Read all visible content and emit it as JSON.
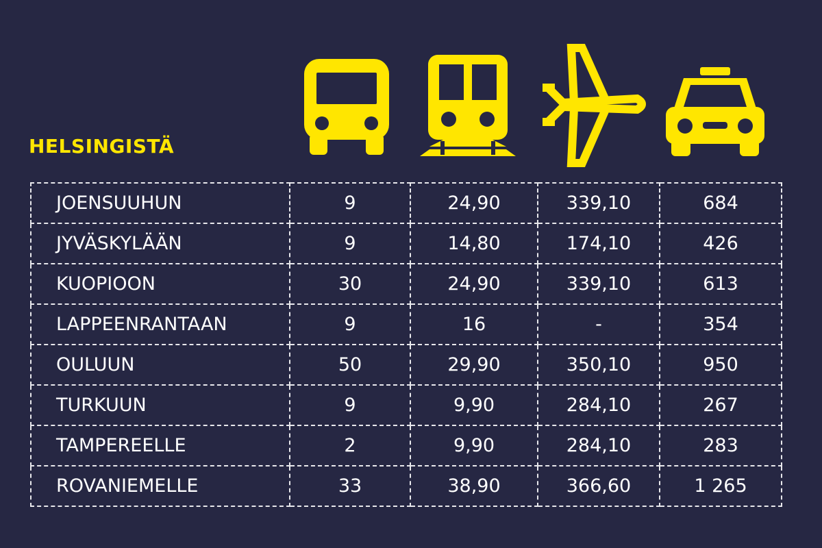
{
  "title": "HELSINGISTÄ",
  "colors": {
    "background": "#262743",
    "accent": "#ffe600",
    "text": "#ffffff",
    "grid": "#e8e8ec"
  },
  "columns": [
    {
      "icon": "bus-icon"
    },
    {
      "icon": "train-icon"
    },
    {
      "icon": "airplane-icon"
    },
    {
      "icon": "taxi-icon"
    }
  ],
  "rows": [
    {
      "city": "JOENSUUHUN",
      "bus": "9",
      "train": "24,90",
      "plane": "339,10",
      "taxi": "684"
    },
    {
      "city": "JYVÄSKYLÄÄN",
      "bus": "9",
      "train": "14,80",
      "plane": "174,10",
      "taxi": "426"
    },
    {
      "city": "KUOPIOON",
      "bus": "30",
      "train": "24,90",
      "plane": "339,10",
      "taxi": "613"
    },
    {
      "city": "LAPPEENRANTAAN",
      "bus": "9",
      "train": "16",
      "plane": "-",
      "taxi": "354"
    },
    {
      "city": "OULUUN",
      "bus": "50",
      "train": "29,90",
      "plane": "350,10",
      "taxi": "950"
    },
    {
      "city": "TURKUUN",
      "bus": "9",
      "train": "9,90",
      "plane": "284,10",
      "taxi": "267"
    },
    {
      "city": "TAMPEREELLE",
      "bus": "2",
      "train": "9,90",
      "plane": "284,10",
      "taxi": "283"
    },
    {
      "city": "ROVANIEMELLE",
      "bus": "33",
      "train": "38,90",
      "plane": "366,60",
      "taxi": "1 265"
    }
  ]
}
